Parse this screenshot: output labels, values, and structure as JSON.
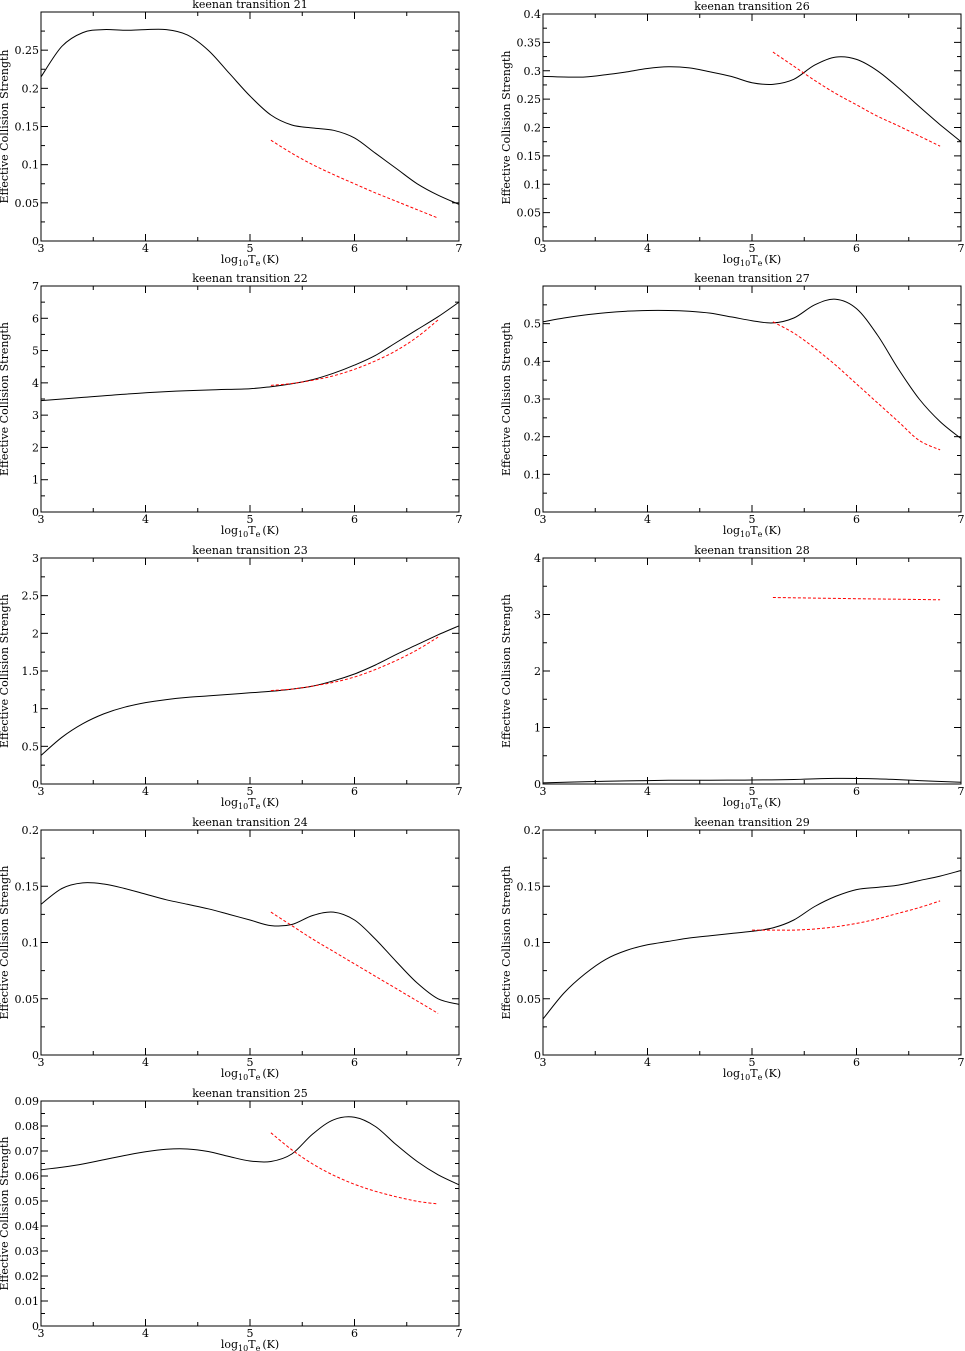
{
  "colors": {
    "series_a": "#000000",
    "series_b": "#ff0000"
  },
  "chart_data": [
    {
      "type": "line",
      "title": "keenan transition 21",
      "xlabel_main": "log",
      "xlabel_sub": "10",
      "xlabel_T": "T",
      "xlabel_e": "e",
      "xlabel_unit": "(K)",
      "ylabel": "Effective Collision Strength",
      "xlim": [
        3,
        7
      ],
      "ylim": [
        0,
        0.3
      ],
      "xticks": [
        3,
        4,
        5,
        6,
        7
      ],
      "yticks": [
        0,
        0.05,
        0.1,
        0.15,
        0.2,
        0.25
      ],
      "ytick_labels": [
        "0",
        "0.05",
        "0.1",
        "0.15",
        "0.2",
        "0.25"
      ],
      "series": [
        {
          "style": "solid",
          "x": [
            3.0,
            3.2,
            3.4,
            3.6,
            3.8,
            4.0,
            4.2,
            4.4,
            4.6,
            4.8,
            5.0,
            5.2,
            5.4,
            5.6,
            5.8,
            6.0,
            6.2,
            6.4,
            6.6,
            6.8,
            7.0
          ],
          "y": [
            0.215,
            0.255,
            0.273,
            0.277,
            0.276,
            0.277,
            0.277,
            0.27,
            0.25,
            0.22,
            0.19,
            0.165,
            0.152,
            0.148,
            0.145,
            0.135,
            0.115,
            0.095,
            0.075,
            0.06,
            0.048
          ]
        },
        {
          "style": "dashed",
          "x": [
            5.2,
            5.4,
            5.6,
            5.8,
            6.0,
            6.2,
            6.4,
            6.6,
            6.8
          ],
          "y": [
            0.132,
            0.115,
            0.1,
            0.087,
            0.075,
            0.063,
            0.052,
            0.041,
            0.03
          ]
        }
      ]
    },
    {
      "type": "line",
      "title": "keenan transition 26",
      "xlabel_main": "log",
      "xlabel_sub": "10",
      "xlabel_T": "T",
      "xlabel_e": "e",
      "xlabel_unit": "(K)",
      "ylabel": "Effective Collision Strength",
      "xlim": [
        3,
        7
      ],
      "ylim": [
        0,
        0.4
      ],
      "xticks": [
        3,
        4,
        5,
        6,
        7
      ],
      "yticks": [
        0,
        0.05,
        0.1,
        0.15,
        0.2,
        0.25,
        0.3,
        0.35,
        0.4
      ],
      "ytick_labels": [
        "0",
        "0.05",
        "0.1",
        "0.15",
        "0.2",
        "0.25",
        "0.3",
        "0.35",
        "0.4"
      ],
      "series": [
        {
          "style": "solid",
          "x": [
            3.0,
            3.2,
            3.4,
            3.6,
            3.8,
            4.0,
            4.2,
            4.4,
            4.6,
            4.8,
            5.0,
            5.2,
            5.4,
            5.6,
            5.8,
            6.0,
            6.2,
            6.4,
            6.6,
            6.8,
            7.0
          ],
          "y": [
            0.29,
            0.289,
            0.289,
            0.293,
            0.298,
            0.304,
            0.307,
            0.305,
            0.298,
            0.29,
            0.279,
            0.276,
            0.285,
            0.31,
            0.324,
            0.32,
            0.3,
            0.27,
            0.237,
            0.205,
            0.175
          ]
        },
        {
          "style": "dashed",
          "x": [
            5.2,
            5.4,
            5.6,
            5.8,
            6.0,
            6.2,
            6.4,
            6.6,
            6.8
          ],
          "y": [
            0.333,
            0.308,
            0.283,
            0.26,
            0.24,
            0.22,
            0.203,
            0.185,
            0.167
          ]
        }
      ]
    },
    {
      "type": "line",
      "title": "keenan transition 22",
      "xlabel_main": "log",
      "xlabel_sub": "10",
      "xlabel_T": "T",
      "xlabel_e": "e",
      "xlabel_unit": "(K)",
      "ylabel": "Effective Collision Strength",
      "xlim": [
        3,
        7
      ],
      "ylim": [
        0,
        7
      ],
      "xticks": [
        3,
        4,
        5,
        6,
        7
      ],
      "yticks": [
        0,
        1,
        2,
        3,
        4,
        5,
        6,
        7
      ],
      "ytick_labels": [
        "0",
        "1",
        "2",
        "3",
        "4",
        "5",
        "6",
        "7"
      ],
      "series": [
        {
          "style": "solid",
          "x": [
            3.0,
            3.4,
            3.8,
            4.2,
            4.6,
            5.0,
            5.2,
            5.4,
            5.6,
            5.8,
            6.0,
            6.2,
            6.4,
            6.6,
            6.8,
            7.0
          ],
          "y": [
            3.45,
            3.55,
            3.65,
            3.73,
            3.78,
            3.82,
            3.88,
            3.97,
            4.1,
            4.3,
            4.55,
            4.85,
            5.25,
            5.65,
            6.05,
            6.5
          ]
        },
        {
          "style": "dashed",
          "x": [
            5.2,
            5.4,
            5.6,
            5.8,
            6.0,
            6.2,
            6.4,
            6.6,
            6.8
          ],
          "y": [
            3.92,
            3.98,
            4.08,
            4.22,
            4.42,
            4.68,
            5.0,
            5.42,
            5.95
          ]
        }
      ]
    },
    {
      "type": "line",
      "title": "keenan transition 27",
      "xlabel_main": "log",
      "xlabel_sub": "10",
      "xlabel_T": "T",
      "xlabel_e": "e",
      "xlabel_unit": "(K)",
      "ylabel": "Effective Collision Strength",
      "xlim": [
        3,
        7
      ],
      "ylim": [
        0,
        0.6
      ],
      "xticks": [
        3,
        4,
        5,
        6,
        7
      ],
      "yticks": [
        0,
        0.1,
        0.2,
        0.3,
        0.4,
        0.5
      ],
      "ytick_labels": [
        "0",
        "0.1",
        "0.2",
        "0.3",
        "0.4",
        "0.5"
      ],
      "series": [
        {
          "style": "solid",
          "x": [
            3.0,
            3.2,
            3.4,
            3.6,
            3.8,
            4.0,
            4.2,
            4.4,
            4.6,
            4.8,
            5.0,
            5.2,
            5.4,
            5.6,
            5.8,
            6.0,
            6.2,
            6.4,
            6.6,
            6.8,
            7.0
          ],
          "y": [
            0.505,
            0.515,
            0.523,
            0.529,
            0.533,
            0.535,
            0.535,
            0.533,
            0.528,
            0.518,
            0.508,
            0.502,
            0.515,
            0.55,
            0.565,
            0.54,
            0.47,
            0.38,
            0.3,
            0.24,
            0.195
          ]
        },
        {
          "style": "dashed",
          "x": [
            5.2,
            5.4,
            5.6,
            5.8,
            6.0,
            6.2,
            6.4,
            6.6,
            6.8
          ],
          "y": [
            0.505,
            0.475,
            0.435,
            0.39,
            0.34,
            0.29,
            0.24,
            0.19,
            0.165
          ]
        }
      ]
    },
    {
      "type": "line",
      "title": "keenan transition 23",
      "xlabel_main": "log",
      "xlabel_sub": "10",
      "xlabel_T": "T",
      "xlabel_e": "e",
      "xlabel_unit": "(K)",
      "ylabel": "Effective Collision Strength",
      "xlim": [
        3,
        7
      ],
      "ylim": [
        0,
        3
      ],
      "xticks": [
        3,
        4,
        5,
        6,
        7
      ],
      "yticks": [
        0,
        0.5,
        1,
        1.5,
        2,
        2.5,
        3
      ],
      "ytick_labels": [
        "0",
        "0.5",
        "1",
        "1.5",
        "2",
        "2.5",
        "3"
      ],
      "series": [
        {
          "style": "solid",
          "x": [
            3.0,
            3.2,
            3.4,
            3.6,
            3.8,
            4.0,
            4.2,
            4.4,
            4.6,
            4.8,
            5.0,
            5.2,
            5.4,
            5.6,
            5.8,
            6.0,
            6.2,
            6.4,
            6.6,
            6.8,
            7.0
          ],
          "y": [
            0.38,
            0.62,
            0.8,
            0.93,
            1.02,
            1.08,
            1.12,
            1.15,
            1.17,
            1.19,
            1.21,
            1.23,
            1.26,
            1.3,
            1.37,
            1.46,
            1.58,
            1.72,
            1.85,
            1.98,
            2.1
          ]
        },
        {
          "style": "dashed",
          "x": [
            5.2,
            5.4,
            5.6,
            5.8,
            6.0,
            6.2,
            6.4,
            6.6,
            6.8
          ],
          "y": [
            1.24,
            1.26,
            1.3,
            1.35,
            1.42,
            1.52,
            1.64,
            1.78,
            1.95
          ]
        }
      ]
    },
    {
      "type": "line",
      "title": "keenan transition 28",
      "xlabel_main": "log",
      "xlabel_sub": "10",
      "xlabel_T": "T",
      "xlabel_e": "e",
      "xlabel_unit": "(K)",
      "ylabel": "Effective Collision Strength",
      "xlim": [
        3,
        7
      ],
      "ylim": [
        0,
        4
      ],
      "xticks": [
        3,
        4,
        5,
        6,
        7
      ],
      "yticks": [
        0,
        1,
        2,
        3,
        4
      ],
      "ytick_labels": [
        "0",
        "1",
        "2",
        "3",
        "4"
      ],
      "series": [
        {
          "style": "solid",
          "x": [
            3.0,
            3.4,
            3.8,
            4.2,
            4.6,
            5.0,
            5.4,
            5.8,
            6.2,
            6.6,
            7.0
          ],
          "y": [
            0.02,
            0.04,
            0.055,
            0.065,
            0.068,
            0.07,
            0.08,
            0.1,
            0.09,
            0.06,
            0.03
          ]
        },
        {
          "style": "dashed",
          "x": [
            5.2,
            5.6,
            6.0,
            6.4,
            6.8
          ],
          "y": [
            3.3,
            3.29,
            3.28,
            3.27,
            3.26
          ]
        }
      ]
    },
    {
      "type": "line",
      "title": "keenan transition 24",
      "xlabel_main": "log",
      "xlabel_sub": "10",
      "xlabel_T": "T",
      "xlabel_e": "e",
      "xlabel_unit": "(K)",
      "ylabel": "Effective Collision Strength",
      "xlim": [
        3,
        7
      ],
      "ylim": [
        0,
        0.2
      ],
      "xticks": [
        3,
        4,
        5,
        6,
        7
      ],
      "yticks": [
        0,
        0.05,
        0.1,
        0.15,
        0.2
      ],
      "ytick_labels": [
        "0",
        "0.05",
        "0.1",
        "0.15",
        "0.2"
      ],
      "series": [
        {
          "style": "solid",
          "x": [
            3.0,
            3.2,
            3.4,
            3.6,
            3.8,
            4.0,
            4.2,
            4.4,
            4.6,
            4.8,
            5.0,
            5.2,
            5.4,
            5.6,
            5.8,
            6.0,
            6.2,
            6.4,
            6.6,
            6.8,
            7.0
          ],
          "y": [
            0.134,
            0.148,
            0.153,
            0.152,
            0.148,
            0.143,
            0.138,
            0.134,
            0.13,
            0.125,
            0.12,
            0.115,
            0.116,
            0.124,
            0.127,
            0.12,
            0.103,
            0.083,
            0.064,
            0.05,
            0.045
          ]
        },
        {
          "style": "dashed",
          "x": [
            5.2,
            5.4,
            5.6,
            5.8,
            6.0,
            6.2,
            6.4,
            6.6,
            6.8
          ],
          "y": [
            0.127,
            0.115,
            0.103,
            0.092,
            0.081,
            0.07,
            0.059,
            0.048,
            0.037
          ]
        }
      ]
    },
    {
      "type": "line",
      "title": "keenan transition 29",
      "xlabel_main": "log",
      "xlabel_sub": "10",
      "xlabel_T": "T",
      "xlabel_e": "e",
      "xlabel_unit": "(K)",
      "ylabel": "Effective Collision Strength",
      "xlim": [
        3,
        7
      ],
      "ylim": [
        0,
        0.2
      ],
      "xticks": [
        3,
        4,
        5,
        6,
        7
      ],
      "yticks": [
        0,
        0.05,
        0.1,
        0.15,
        0.2
      ],
      "ytick_labels": [
        "0",
        "0.05",
        "0.1",
        "0.15",
        "0.2"
      ],
      "series": [
        {
          "style": "solid",
          "x": [
            3.0,
            3.2,
            3.4,
            3.6,
            3.8,
            4.0,
            4.2,
            4.4,
            4.6,
            4.8,
            5.0,
            5.2,
            5.4,
            5.6,
            5.8,
            6.0,
            6.2,
            6.4,
            6.6,
            6.8,
            7.0
          ],
          "y": [
            0.032,
            0.055,
            0.072,
            0.085,
            0.093,
            0.098,
            0.101,
            0.104,
            0.106,
            0.108,
            0.11,
            0.113,
            0.12,
            0.132,
            0.141,
            0.147,
            0.149,
            0.151,
            0.155,
            0.159,
            0.164
          ]
        },
        {
          "style": "dashed",
          "x": [
            5.0,
            5.2,
            5.4,
            5.6,
            5.8,
            6.0,
            6.2,
            6.4,
            6.6,
            6.8
          ],
          "y": [
            0.111,
            0.111,
            0.111,
            0.112,
            0.114,
            0.117,
            0.121,
            0.126,
            0.131,
            0.137
          ]
        }
      ]
    },
    {
      "type": "line",
      "title": "keenan transition 25",
      "xlabel_main": "log",
      "xlabel_sub": "10",
      "xlabel_T": "T",
      "xlabel_e": "e",
      "xlabel_unit": "(K)",
      "ylabel": "Effective Collision Strength",
      "xlim": [
        3,
        7
      ],
      "ylim": [
        0,
        0.09
      ],
      "xticks": [
        3,
        4,
        5,
        6,
        7
      ],
      "yticks": [
        0,
        0.01,
        0.02,
        0.03,
        0.04,
        0.05,
        0.06,
        0.07,
        0.08,
        0.09
      ],
      "ytick_labels": [
        "0",
        "0.01",
        "0.02",
        "0.03",
        "0.04",
        "0.05",
        "0.06",
        "0.07",
        "0.08",
        "0.09"
      ],
      "series": [
        {
          "style": "solid",
          "x": [
            3.0,
            3.2,
            3.4,
            3.6,
            3.8,
            4.0,
            4.2,
            4.4,
            4.6,
            4.8,
            5.0,
            5.2,
            5.4,
            5.6,
            5.8,
            6.0,
            6.2,
            6.4,
            6.6,
            6.8,
            7.0
          ],
          "y": [
            0.0625,
            0.0635,
            0.0648,
            0.0665,
            0.0682,
            0.0697,
            0.0707,
            0.0708,
            0.0698,
            0.0678,
            0.066,
            0.0658,
            0.0688,
            0.0768,
            0.0825,
            0.0835,
            0.0798,
            0.0725,
            0.0658,
            0.0605,
            0.0565
          ]
        },
        {
          "style": "dashed",
          "x": [
            5.2,
            5.4,
            5.6,
            5.8,
            6.0,
            6.2,
            6.4,
            6.6,
            6.8
          ],
          "y": [
            0.0773,
            0.0705,
            0.0648,
            0.0603,
            0.0567,
            0.0539,
            0.0517,
            0.0499,
            0.0488
          ]
        }
      ]
    }
  ]
}
